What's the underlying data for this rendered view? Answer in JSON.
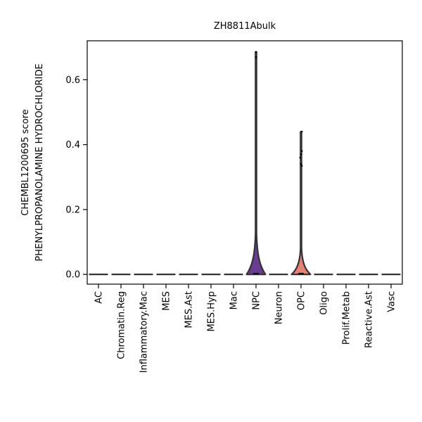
{
  "chart_data": {
    "type": "violin",
    "title": "ZH8811Abulk",
    "ylabel_lines": [
      "CHEMBL1200695 score",
      "PHENYLPROPANOLAMINE HYDROCHLORIDE"
    ],
    "xlabel": "",
    "ylim": [
      -0.03,
      0.72
    ],
    "yticks": [
      0.0,
      0.2,
      0.4,
      0.6
    ],
    "ytick_labels": [
      "0.0",
      "0.2",
      "0.4",
      "0.6"
    ],
    "grid": false,
    "categories": [
      "AC",
      "Chromatin.Reg",
      "Inflammatory.Mac",
      "MES",
      "MES.Ast",
      "MES.Hyp",
      "Mac",
      "NPC",
      "Neuron",
      "OPC",
      "Oligo",
      "Prolif.Metab",
      "Reactive.Ast",
      "Vasc"
    ],
    "series": [
      {
        "category": "AC",
        "min": 0.0,
        "max": 0.0,
        "max_halfwidth": 0.0,
        "color": "#333333"
      },
      {
        "category": "Chromatin.Reg",
        "min": 0.0,
        "max": 0.0,
        "max_halfwidth": 0.0,
        "color": "#333333"
      },
      {
        "category": "Inflammatory.Mac",
        "min": 0.0,
        "max": 0.0,
        "max_halfwidth": 0.0,
        "color": "#333333"
      },
      {
        "category": "MES",
        "min": 0.0,
        "max": 0.0,
        "max_halfwidth": 0.0,
        "color": "#333333"
      },
      {
        "category": "MES.Ast",
        "min": 0.0,
        "max": 0.0,
        "max_halfwidth": 0.0,
        "color": "#333333"
      },
      {
        "category": "MES.Hyp",
        "min": 0.0,
        "max": 0.0,
        "max_halfwidth": 0.0,
        "color": "#333333"
      },
      {
        "category": "Mac",
        "min": 0.0,
        "max": 0.0,
        "max_halfwidth": 0.0,
        "color": "#333333"
      },
      {
        "category": "NPC",
        "min": 0.0,
        "max": 0.686,
        "max_halfwidth": 0.42,
        "color": "#6a3d8f"
      },
      {
        "category": "Neuron",
        "min": 0.0,
        "max": 0.0,
        "max_halfwidth": 0.0,
        "color": "#333333"
      },
      {
        "category": "OPC",
        "min": 0.0,
        "max": 0.44,
        "max_halfwidth": 0.42,
        "color": "#e8807a"
      },
      {
        "category": "Oligo",
        "min": 0.0,
        "max": 0.0,
        "max_halfwidth": 0.0,
        "color": "#333333"
      },
      {
        "category": "Prolif.Metab",
        "min": 0.0,
        "max": 0.0,
        "max_halfwidth": 0.0,
        "color": "#333333"
      },
      {
        "category": "Reactive.Ast",
        "min": 0.0,
        "max": 0.0,
        "max_halfwidth": 0.0,
        "color": "#333333"
      },
      {
        "category": "Vasc",
        "min": 0.0,
        "max": 0.0,
        "max_halfwidth": 0.0,
        "color": "#333333"
      }
    ],
    "points": [
      {
        "category": "NPC",
        "y": 0.685
      },
      {
        "category": "NPC",
        "y": 0.67
      },
      {
        "category": "OPC",
        "y": 0.44
      },
      {
        "category": "OPC",
        "y": 0.38
      },
      {
        "category": "OPC",
        "y": 0.37
      },
      {
        "category": "OPC",
        "y": 0.36
      },
      {
        "category": "OPC",
        "y": 0.34
      },
      {
        "category": "OPC",
        "y": 0.335
      }
    ]
  }
}
